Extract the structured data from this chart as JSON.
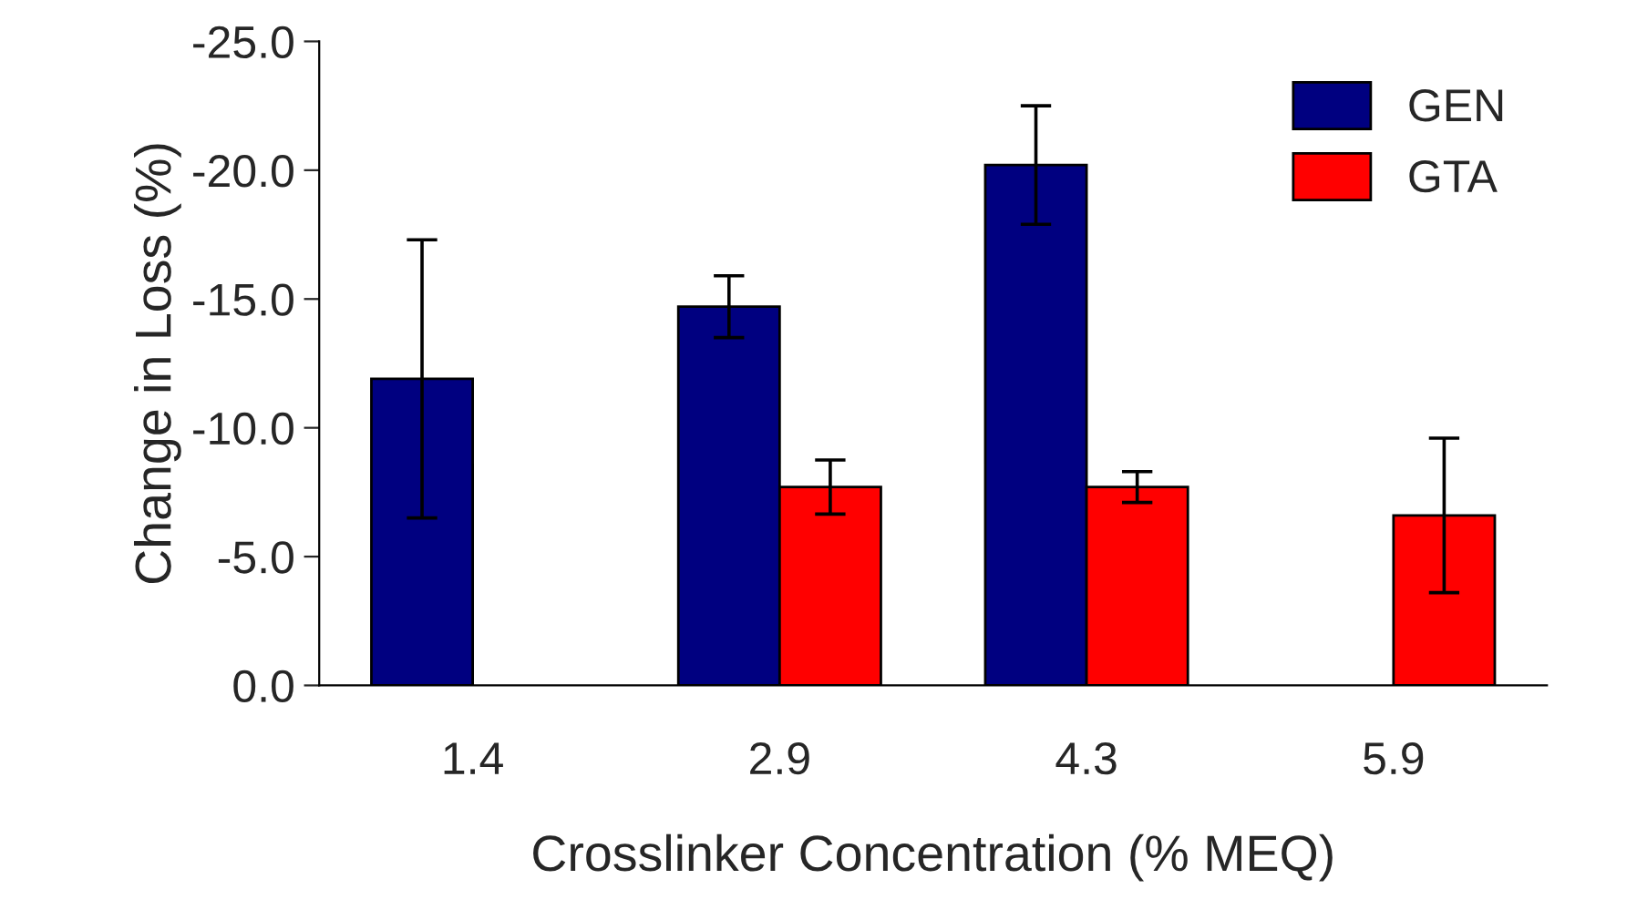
{
  "chart_data": {
    "type": "bar",
    "xlabel": "Crosslinker Concentration (% MEQ)",
    "ylabel": "Change in Loss (%)",
    "categories": [
      "1.4",
      "2.9",
      "4.3",
      "5.9"
    ],
    "series": [
      {
        "name": "GEN",
        "color": "#000080",
        "values": [
          -11.9,
          -14.7,
          -20.2,
          null
        ],
        "errors": [
          5.4,
          1.2,
          2.3,
          null
        ]
      },
      {
        "name": "GTA",
        "color": "#ff0000",
        "values": [
          null,
          -7.7,
          -7.7,
          -6.6
        ],
        "errors": [
          null,
          1.05,
          0.6,
          3.0
        ]
      }
    ],
    "ylim": [
      0,
      -25
    ],
    "yticks": [
      {
        "value": 0,
        "label": "0.0"
      },
      {
        "value": -5,
        "label": "-5.0"
      },
      {
        "value": -10,
        "label": "-10.0"
      },
      {
        "value": -15,
        "label": "-15.0"
      },
      {
        "value": -20,
        "label": "-20.0"
      },
      {
        "value": -25,
        "label": "-25.0"
      }
    ],
    "grid": false,
    "legend": "top right"
  }
}
